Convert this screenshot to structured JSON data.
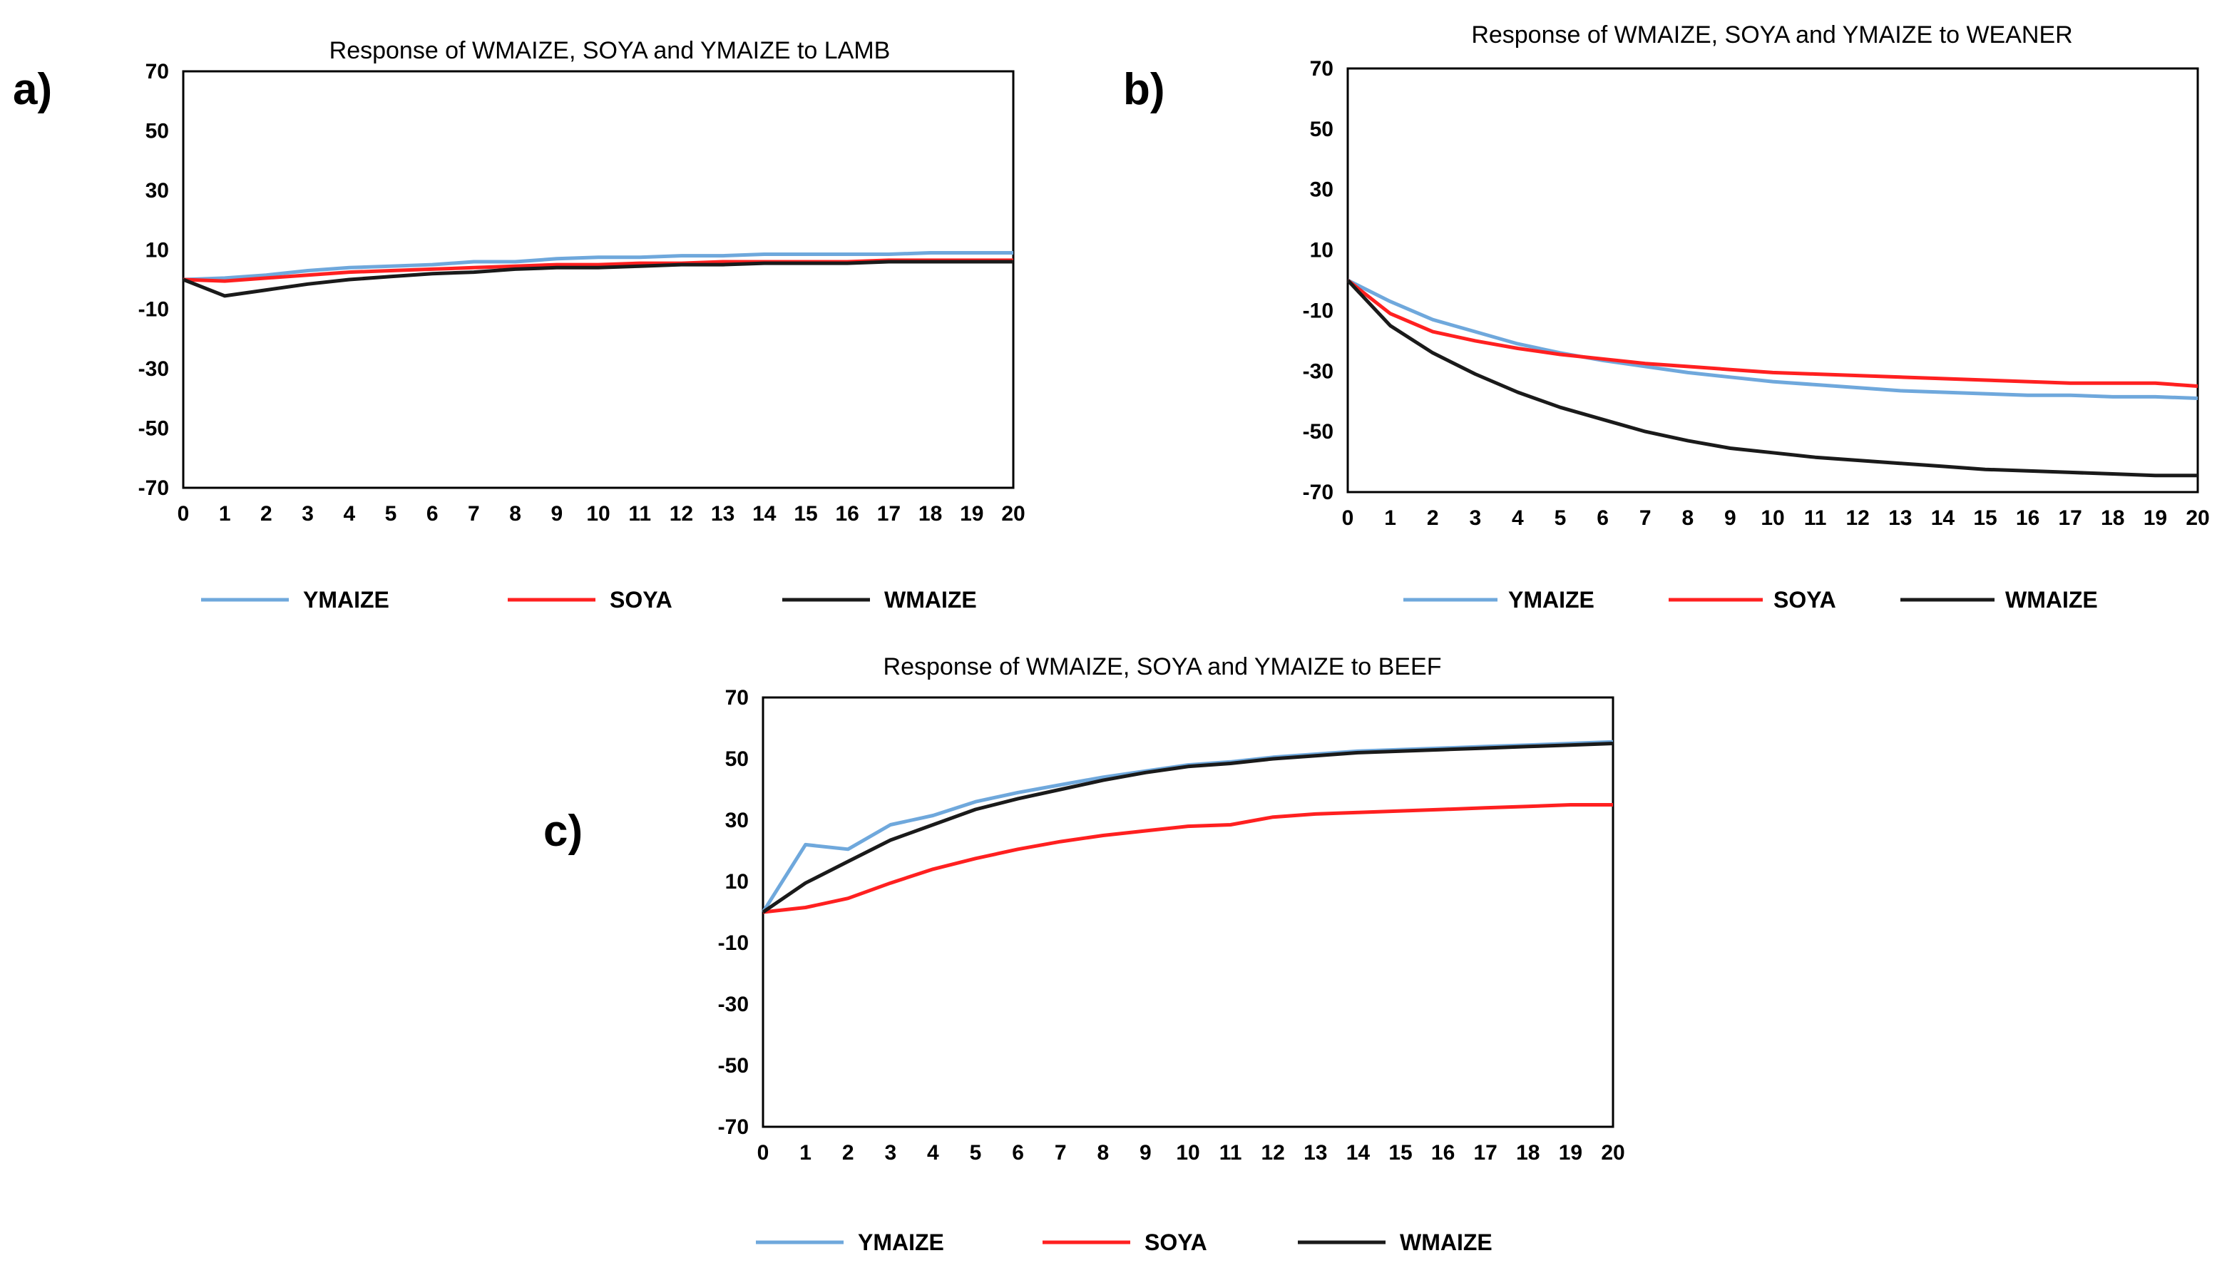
{
  "chart_data": [
    {
      "type": "line",
      "panel": "a)",
      "title": "Response of WMAIZE, SOYA and YMAIZE to LAMB",
      "xlabel": "",
      "ylabel": "",
      "x": [
        0,
        1,
        2,
        3,
        4,
        5,
        6,
        7,
        8,
        9,
        10,
        11,
        12,
        13,
        14,
        15,
        16,
        17,
        18,
        19,
        20
      ],
      "x_tick_labels": [
        "0",
        "1",
        "2",
        "3",
        "4",
        "5",
        "6",
        "7",
        "8",
        "9",
        "10",
        "11",
        "12",
        "13",
        "14",
        "15",
        "16",
        "17",
        "18",
        "19",
        "20"
      ],
      "ylim": [
        -70,
        70
      ],
      "y_ticks": [
        70,
        50,
        30,
        10,
        -10,
        -30,
        -50,
        -70
      ],
      "grid": false,
      "legend_position": "bottom",
      "series": [
        {
          "name": "YMAIZE",
          "color": "#6fa8dc",
          "values": [
            0,
            0.5,
            1.5,
            3,
            4,
            4.5,
            5,
            6,
            6,
            7,
            7.5,
            7.5,
            8,
            8,
            8.5,
            8.5,
            8.5,
            8.5,
            9,
            9,
            9
          ]
        },
        {
          "name": "SOYA",
          "color": "#ff2020",
          "values": [
            0,
            -0.5,
            0.5,
            1.5,
            2.5,
            3,
            3.5,
            4,
            4.5,
            5,
            5,
            5.5,
            5.5,
            6,
            6,
            6,
            6,
            6.5,
            6.5,
            6.5,
            6.5
          ]
        },
        {
          "name": "WMAIZE",
          "color": "#1a1a1a",
          "values": [
            0,
            -5.5,
            -3.5,
            -1.5,
            0,
            1,
            2,
            2.5,
            3.5,
            4,
            4,
            4.5,
            5,
            5,
            5.5,
            5.5,
            5.5,
            6,
            6,
            6,
            6
          ]
        }
      ]
    },
    {
      "type": "line",
      "panel": "b)",
      "title": "Response of WMAIZE, SOYA and YMAIZE to WEANER",
      "xlabel": "",
      "ylabel": "",
      "x": [
        0,
        1,
        2,
        3,
        4,
        5,
        6,
        7,
        8,
        9,
        10,
        11,
        12,
        13,
        14,
        15,
        16,
        17,
        18,
        19,
        20
      ],
      "x_tick_labels": [
        "0",
        "1",
        "2",
        "3",
        "4",
        "5",
        "6",
        "7",
        "8",
        "9",
        "10",
        "11",
        "12",
        "13",
        "14",
        "15",
        "16",
        "17",
        "18",
        "19",
        "20"
      ],
      "ylim": [
        -70,
        70
      ],
      "y_ticks": [
        70,
        50,
        30,
        10,
        -10,
        -30,
        -50,
        -70
      ],
      "grid": false,
      "legend_position": "bottom",
      "series": [
        {
          "name": "YMAIZE",
          "color": "#6fa8dc",
          "values": [
            0,
            -7,
            -13,
            -17,
            -21,
            -24,
            -26.5,
            -28.5,
            -30.5,
            -32,
            -33.5,
            -34.5,
            -35.5,
            -36.5,
            -37,
            -37.5,
            -38,
            -38,
            -38.5,
            -38.5,
            -39
          ]
        },
        {
          "name": "SOYA",
          "color": "#ff2020",
          "values": [
            0,
            -11,
            -17,
            -20,
            -22.5,
            -24.5,
            -26,
            -27.5,
            -28.5,
            -29.5,
            -30.5,
            -31,
            -31.5,
            -32,
            -32.5,
            -33,
            -33.5,
            -34,
            -34,
            -34,
            -35
          ]
        },
        {
          "name": "WMAIZE",
          "color": "#1a1a1a",
          "values": [
            0,
            -15,
            -24,
            -31,
            -37,
            -42,
            -46,
            -50,
            -53,
            -55.5,
            -57,
            -58.5,
            -59.5,
            -60.5,
            -61.5,
            -62.5,
            -63,
            -63.5,
            -64,
            -64.5,
            -64.5
          ]
        }
      ]
    },
    {
      "type": "line",
      "panel": "c)",
      "title": "Response of WMAIZE, SOYA and YMAIZE to BEEF",
      "xlabel": "",
      "ylabel": "",
      "x": [
        0,
        1,
        2,
        3,
        4,
        5,
        6,
        7,
        8,
        9,
        10,
        11,
        12,
        13,
        14,
        15,
        16,
        17,
        18,
        19,
        20
      ],
      "x_tick_labels": [
        "0",
        "1",
        "2",
        "3",
        "4",
        "5",
        "6",
        "7",
        "8",
        "9",
        "10",
        "11",
        "12",
        "13",
        "14",
        "15",
        "16",
        "17",
        "18",
        "19",
        "20"
      ],
      "ylim": [
        -70,
        70
      ],
      "y_ticks": [
        70,
        50,
        30,
        10,
        -10,
        -30,
        -50,
        -70
      ],
      "grid": false,
      "legend_position": "bottom",
      "series": [
        {
          "name": "YMAIZE",
          "color": "#6fa8dc",
          "values": [
            0,
            22,
            20.5,
            28.5,
            31.5,
            36,
            39,
            41.5,
            44,
            46,
            48,
            49,
            50.5,
            51.5,
            52.5,
            53,
            53.5,
            54,
            54.5,
            55,
            55.5
          ]
        },
        {
          "name": "SOYA",
          "color": "#ff2020",
          "values": [
            0,
            1.5,
            4.5,
            9.5,
            14,
            17.5,
            20.5,
            23,
            25,
            26.5,
            28,
            28.5,
            31,
            32,
            32.5,
            33,
            33.5,
            34,
            34.5,
            35,
            35
          ]
        },
        {
          "name": "WMAIZE",
          "color": "#1a1a1a",
          "values": [
            0,
            9.5,
            16.5,
            23.5,
            28.5,
            33.5,
            37,
            40,
            43,
            45.5,
            47.5,
            48.5,
            50,
            51,
            52,
            52.5,
            53,
            53.5,
            54,
            54.5,
            55
          ]
        }
      ]
    }
  ]
}
